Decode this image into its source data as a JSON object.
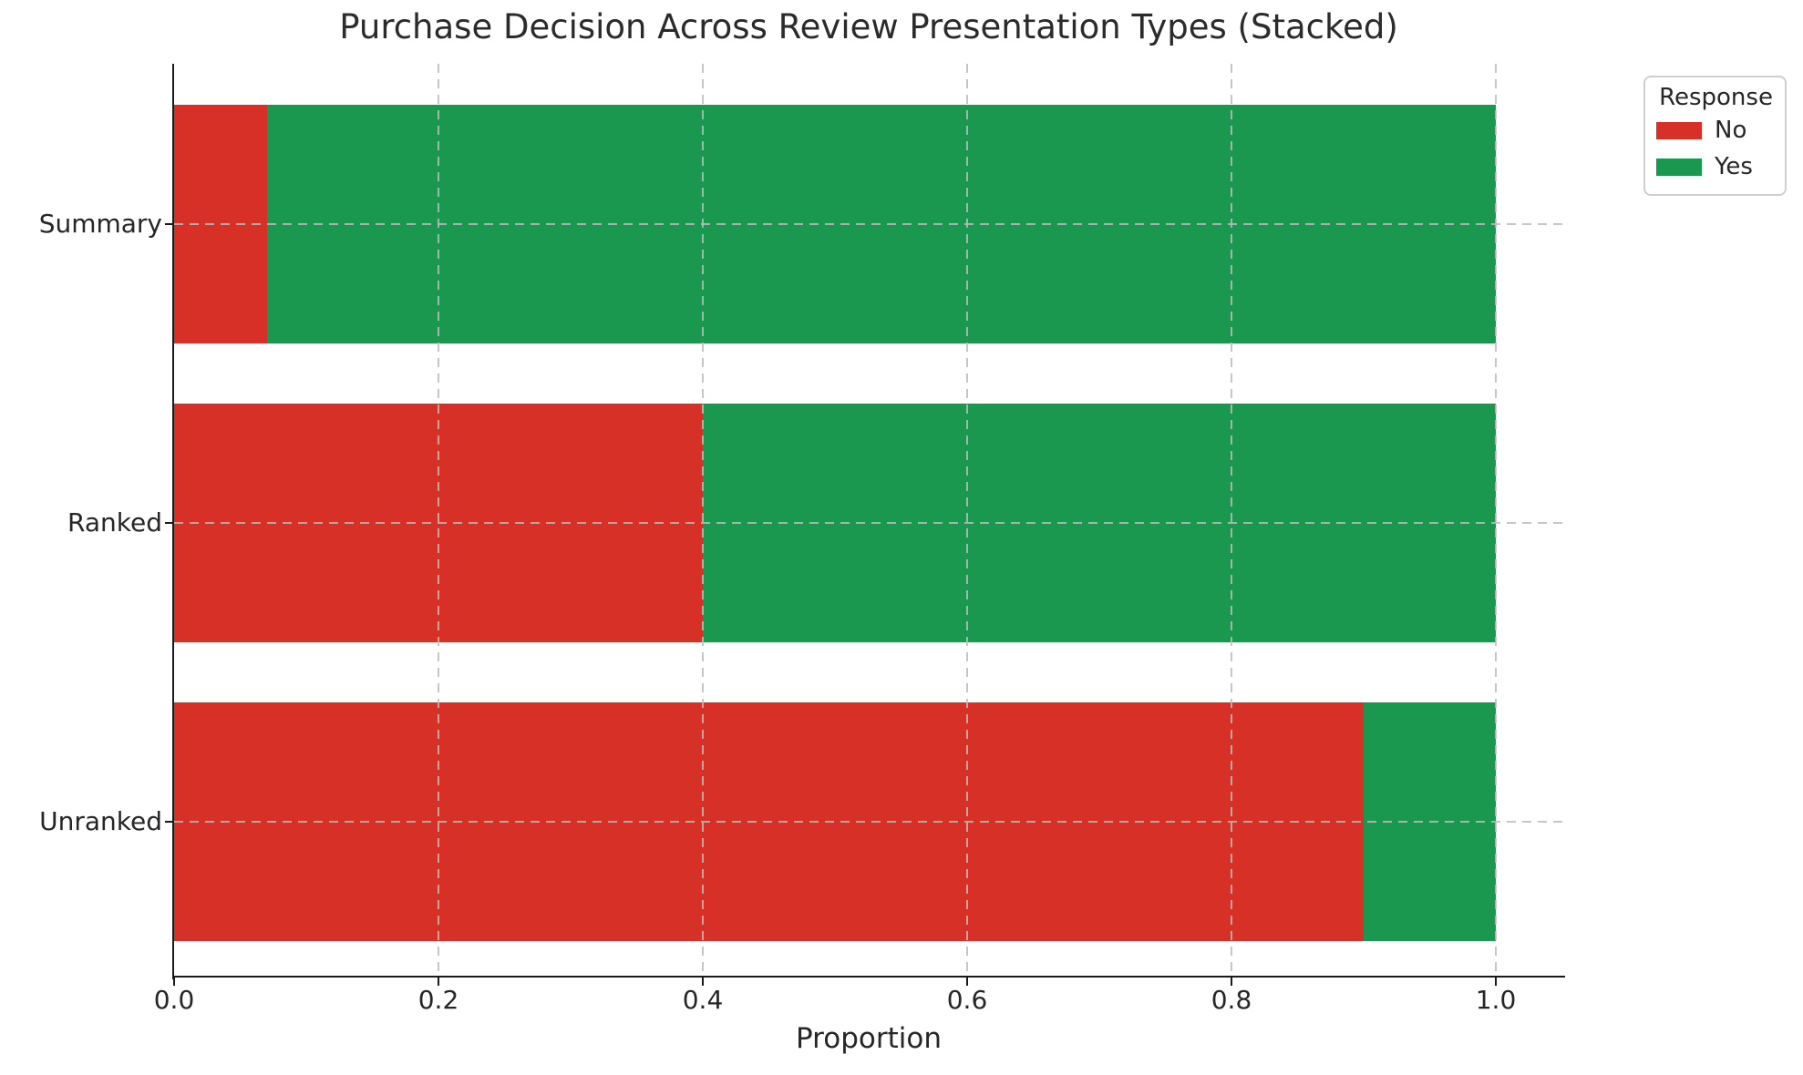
{
  "chart_data": {
    "type": "bar",
    "orientation": "horizontal",
    "stacked": true,
    "title": "Purchase Decision Across Review Presentation Types (Stacked)",
    "xlabel": "Proportion",
    "ylabel": "",
    "categories": [
      "Summary",
      "Ranked",
      "Unranked"
    ],
    "series": [
      {
        "name": "No",
        "color": "#d73027",
        "values": [
          0.07,
          0.4,
          0.9
        ]
      },
      {
        "name": "Yes",
        "color": "#1a9850",
        "values": [
          0.93,
          0.6,
          0.1
        ]
      }
    ],
    "x_ticks": [
      0.0,
      0.2,
      0.4,
      0.6,
      0.8,
      1.0
    ],
    "x_tick_labels": [
      "0.0",
      "0.2",
      "0.4",
      "0.6",
      "0.8",
      "1.0"
    ],
    "xlim": [
      0,
      1.05
    ],
    "grid": "dashed",
    "legend": {
      "title": "Response",
      "position": "upper-right-outside"
    },
    "background_color": "#ffffff",
    "bar_colors": {
      "No": "#d73027",
      "Yes": "#1a9850"
    }
  }
}
